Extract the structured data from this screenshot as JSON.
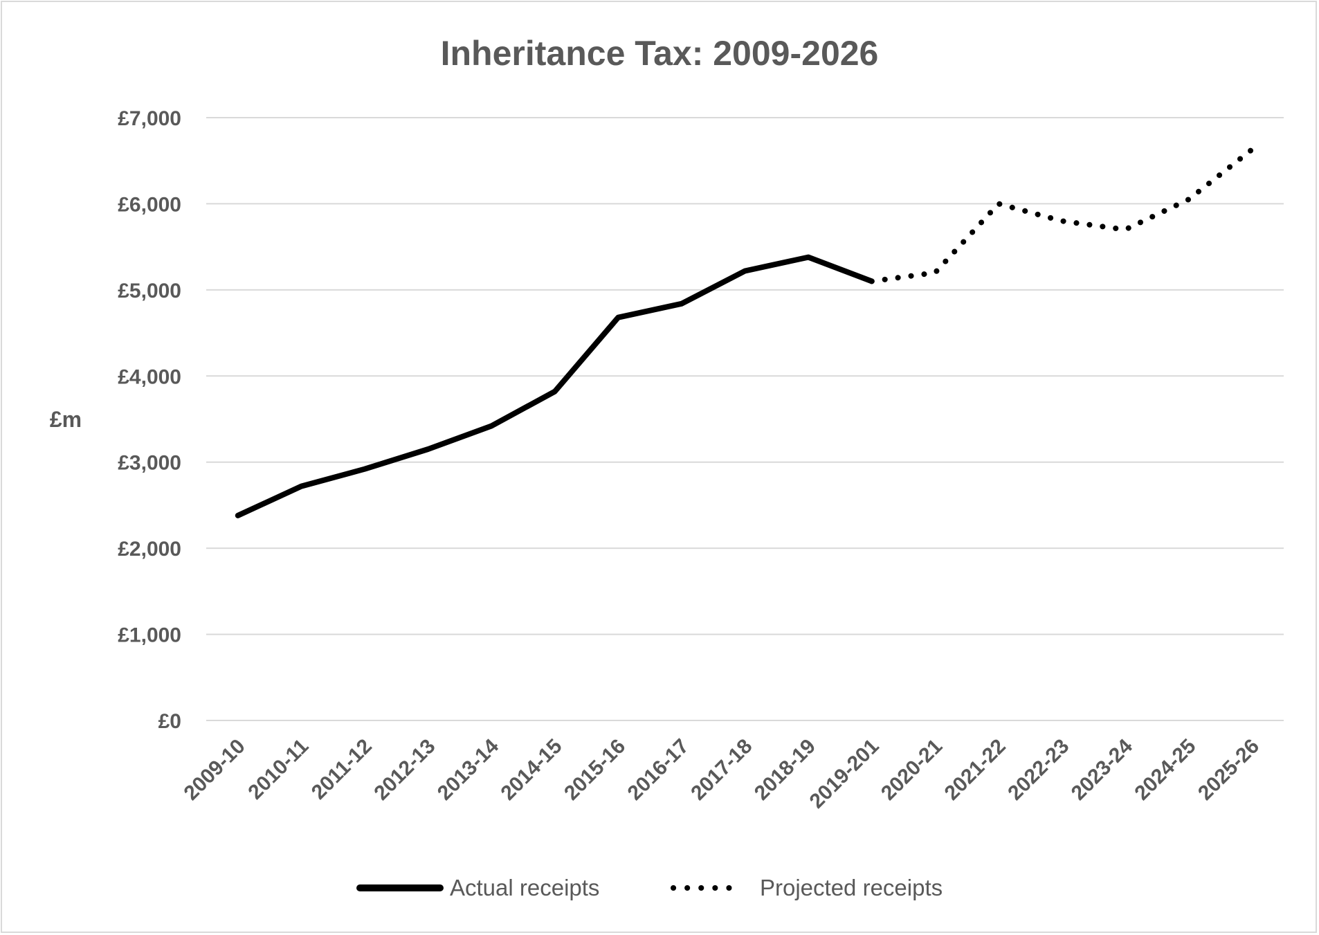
{
  "chart_data": {
    "type": "line",
    "title": "Inheritance Tax: 2009-2026",
    "xlabel": "",
    "ylabel": "£m",
    "categories": [
      "2009-10",
      "2010-11",
      "2011-12",
      "2012-13",
      "2013-14",
      "2014-15",
      "2015-16",
      "2016-17",
      "2017-18",
      "2018-19",
      "2019-201",
      "2020-21",
      "2021-22",
      "2022-23",
      "2023-24",
      "2024-25",
      "2025-26"
    ],
    "ylim": [
      0,
      7000
    ],
    "yticks": [
      0,
      1000,
      2000,
      3000,
      4000,
      5000,
      6000,
      7000
    ],
    "ytick_labels": [
      "£0",
      "£1,000",
      "£2,000",
      "£3,000",
      "£4,000",
      "£5,000",
      "£6,000",
      "£7,000"
    ],
    "grid": true,
    "legend_position": "bottom",
    "series": [
      {
        "name": "Actual receipts",
        "style": "solid",
        "color": "#000000",
        "values": [
          2380,
          2720,
          2920,
          3150,
          3420,
          3820,
          4680,
          4840,
          5220,
          5380,
          5100,
          null,
          null,
          null,
          null,
          null,
          null
        ]
      },
      {
        "name": "Projected receipts",
        "style": "dotted",
        "color": "#000000",
        "values": [
          null,
          null,
          null,
          null,
          null,
          null,
          null,
          null,
          null,
          null,
          5100,
          5200,
          6000,
          5800,
          5700,
          6050,
          6630
        ]
      }
    ]
  }
}
